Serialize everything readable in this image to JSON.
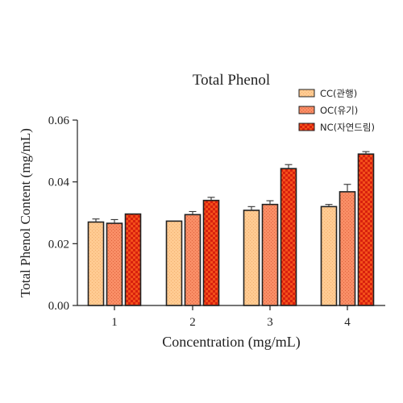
{
  "chart_data": {
    "type": "bar",
    "title": "Total Phenol",
    "xlabel": "Concentration (mg/mL)",
    "ylabel": "Total Phenol Content (mg/mL)",
    "categories": [
      "1",
      "2",
      "3",
      "4"
    ],
    "ylim": [
      0,
      0.06
    ],
    "yticks": [
      0.0,
      0.02,
      0.04,
      0.06
    ],
    "ytick_labels": [
      "0.00",
      "0.02",
      "0.04",
      "0.06"
    ],
    "grid": false,
    "legend_position": "top-right",
    "series": [
      {
        "name": "CC(관행)",
        "values": [
          0.027,
          0.0273,
          0.0308,
          0.032
        ],
        "errors": [
          0.001,
          0.0,
          0.0012,
          0.0007
        ],
        "color": "#FFC78C",
        "pattern": "dots"
      },
      {
        "name": "OC(유기)",
        "values": [
          0.0266,
          0.0294,
          0.0327,
          0.0368
        ],
        "errors": [
          0.0012,
          0.001,
          0.0012,
          0.0024
        ],
        "color": "#F98C64",
        "pattern": "dots"
      },
      {
        "name": "NC(자연드림)",
        "values": [
          0.0296,
          0.034,
          0.0443,
          0.049
        ],
        "errors": [
          0.0,
          0.001,
          0.0013,
          0.0008
        ],
        "color": "#F04A1C",
        "pattern": "checker"
      }
    ]
  }
}
